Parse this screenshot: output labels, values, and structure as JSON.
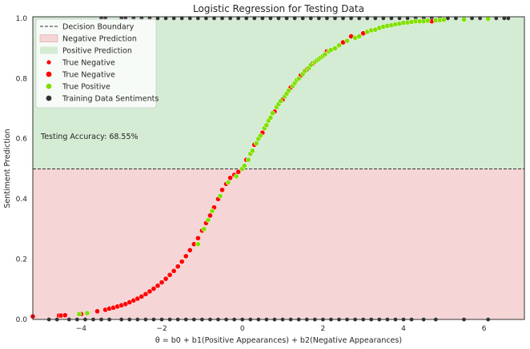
{
  "chart_data": {
    "type": "scatter",
    "title": "Logistic Regression for Testing Data",
    "xlabel": "θ = b0 + b1(Positive Appearances) + b2(Negative Appearances)",
    "ylabel": "Sentiment Prediction",
    "xlim": [
      -5.2,
      7.0
    ],
    "ylim": [
      0.0,
      1.005
    ],
    "xticks": [
      -4,
      -2,
      0,
      2,
      4,
      6
    ],
    "xtick_labels": [
      "−4",
      "−2",
      "0",
      "2",
      "4",
      "6"
    ],
    "yticks": [
      0.0,
      0.2,
      0.4,
      0.6,
      0.8,
      1.0
    ],
    "ytick_labels": [
      "0.0",
      "0.2",
      "0.4",
      "0.6",
      "0.8",
      "1.0"
    ],
    "grid": false,
    "decision_boundary": 0.5,
    "regions": [
      {
        "name": "Negative Prediction",
        "y_range": [
          0.0,
          0.5
        ],
        "color": "#f5d5d6"
      },
      {
        "name": "Positive Prediction",
        "y_range": [
          0.5,
          1.005
        ],
        "color": "#d4ebd4"
      }
    ],
    "annotation": "Testing Accuracy: 68.55%",
    "legend": {
      "placement": "top-left",
      "entries": [
        {
          "label": "Decision Boundary",
          "kind": "dashed-line",
          "color": "#333333"
        },
        {
          "label": "Negative Prediction",
          "kind": "patch",
          "color": "#f5d5d6"
        },
        {
          "label": "Positive Prediction",
          "kind": "patch",
          "color": "#d4ebd4"
        },
        {
          "label": "True Negative",
          "kind": "marker-small",
          "color": "#ff0000"
        },
        {
          "label": "True Negative",
          "kind": "marker",
          "color": "#ff0000"
        },
        {
          "label": "True Positive",
          "kind": "marker",
          "color": "#7fe000"
        },
        {
          "label": "Training Data Sentiments",
          "kind": "marker",
          "color": "#333333"
        }
      ]
    },
    "series": [
      {
        "name": "True Negative",
        "color": "#ff0000",
        "x": [
          -5.2,
          -4.55,
          -4.5,
          -4.4,
          -4.0,
          -3.6,
          -3.4,
          -3.3,
          -3.2,
          -3.1,
          -3.0,
          -2.9,
          -2.8,
          -2.7,
          -2.6,
          -2.5,
          -2.4,
          -2.3,
          -2.2,
          -2.1,
          -2.0,
          -1.9,
          -1.8,
          -1.7,
          -1.6,
          -1.5,
          -1.4,
          -1.3,
          -1.2,
          -1.1,
          -1.0,
          -0.9,
          -0.8,
          -0.7,
          -0.6,
          -0.5,
          -0.4,
          -0.3,
          -0.2,
          -0.1,
          0.1,
          0.3,
          0.5,
          0.8,
          1.0,
          1.2,
          1.45,
          1.6,
          1.75,
          2.1,
          2.5,
          2.7,
          3.0,
          4.7
        ],
        "y": [
          0.01,
          0.013,
          0.013,
          0.014,
          0.018,
          0.027,
          0.032,
          0.036,
          0.039,
          0.043,
          0.047,
          0.051,
          0.057,
          0.063,
          0.069,
          0.076,
          0.084,
          0.093,
          0.102,
          0.112,
          0.123,
          0.135,
          0.148,
          0.161,
          0.176,
          0.192,
          0.21,
          0.23,
          0.25,
          0.27,
          0.295,
          0.32,
          0.345,
          0.372,
          0.4,
          0.43,
          0.45,
          0.47,
          0.48,
          0.49,
          0.53,
          0.58,
          0.62,
          0.69,
          0.73,
          0.77,
          0.81,
          0.83,
          0.85,
          0.89,
          0.92,
          0.94,
          0.95,
          0.99
        ]
      },
      {
        "name": "True Positive",
        "color": "#7fe000",
        "x": [
          -4.05,
          -3.85,
          -1.1,
          -0.95,
          -0.85,
          -0.75,
          -0.55,
          -0.35,
          -0.15,
          0.0,
          0.05,
          0.15,
          0.2,
          0.25,
          0.35,
          0.4,
          0.45,
          0.55,
          0.6,
          0.65,
          0.7,
          0.75,
          0.85,
          0.9,
          0.95,
          1.05,
          1.1,
          1.15,
          1.25,
          1.3,
          1.35,
          1.4,
          1.5,
          1.55,
          1.65,
          1.7,
          1.8,
          1.85,
          1.9,
          1.95,
          2.0,
          2.05,
          2.15,
          2.2,
          2.3,
          2.4,
          2.6,
          2.8,
          2.9,
          3.1,
          3.2,
          3.3,
          3.4,
          3.5,
          3.6,
          3.7,
          3.8,
          3.9,
          4.0,
          4.1,
          4.2,
          4.3,
          4.4,
          4.5,
          4.6,
          4.8,
          4.9,
          5.0,
          5.5,
          6.1
        ],
        "y": [
          0.018,
          0.021,
          0.25,
          0.3,
          0.33,
          0.36,
          0.41,
          0.455,
          0.475,
          0.5,
          0.51,
          0.53,
          0.55,
          0.56,
          0.585,
          0.6,
          0.61,
          0.635,
          0.645,
          0.66,
          0.67,
          0.685,
          0.705,
          0.715,
          0.725,
          0.74,
          0.75,
          0.76,
          0.775,
          0.785,
          0.795,
          0.8,
          0.815,
          0.825,
          0.835,
          0.845,
          0.855,
          0.86,
          0.865,
          0.87,
          0.875,
          0.88,
          0.89,
          0.895,
          0.9,
          0.91,
          0.925,
          0.935,
          0.94,
          0.955,
          0.96,
          0.962,
          0.968,
          0.972,
          0.975,
          0.977,
          0.98,
          0.982,
          0.985,
          0.986,
          0.988,
          0.99,
          0.99,
          0.99,
          0.992,
          0.993,
          0.994,
          0.995,
          0.996,
          0.998
        ]
      },
      {
        "name": "Training Data Sentiments",
        "color": "#333333",
        "x_at_0": [
          -4.8,
          -4.6,
          -4.3,
          -4.1,
          -3.9,
          -3.7,
          -3.5,
          -3.3,
          -3.0,
          -2.8,
          -2.6,
          -2.4,
          -2.2,
          -2.0,
          -1.8,
          -1.6,
          -1.4,
          -1.2,
          -1.0,
          -0.8,
          -0.6,
          -0.4,
          -0.2,
          0.0,
          0.2,
          0.4,
          0.6,
          0.8,
          1.0,
          1.2,
          1.4,
          1.6,
          1.8,
          2.0,
          2.2,
          2.4,
          2.6,
          2.8,
          3.0,
          3.2,
          3.4,
          3.6,
          3.8,
          4.0,
          4.2,
          4.5,
          4.8,
          5.5,
          6.1
        ],
        "x_at_1": [
          -3.5,
          -3.4,
          -3.0,
          -2.9,
          -2.7,
          -2.5,
          -2.3,
          -2.1,
          -1.9,
          -1.7,
          -1.5,
          -1.3,
          -1.1,
          -0.9,
          -0.7,
          -0.5,
          -0.3,
          -0.1,
          0.1,
          0.3,
          0.5,
          0.7,
          0.9,
          1.1,
          1.3,
          1.5,
          1.7,
          1.9,
          2.1,
          2.3,
          2.5,
          2.7,
          2.9,
          3.1,
          3.3,
          3.5,
          3.7,
          3.9,
          4.1,
          4.3,
          4.5,
          4.7,
          4.9,
          5.1,
          5.3,
          5.5,
          5.7,
          5.9,
          6.1,
          6.3,
          6.5,
          6.6
        ]
      }
    ]
  }
}
